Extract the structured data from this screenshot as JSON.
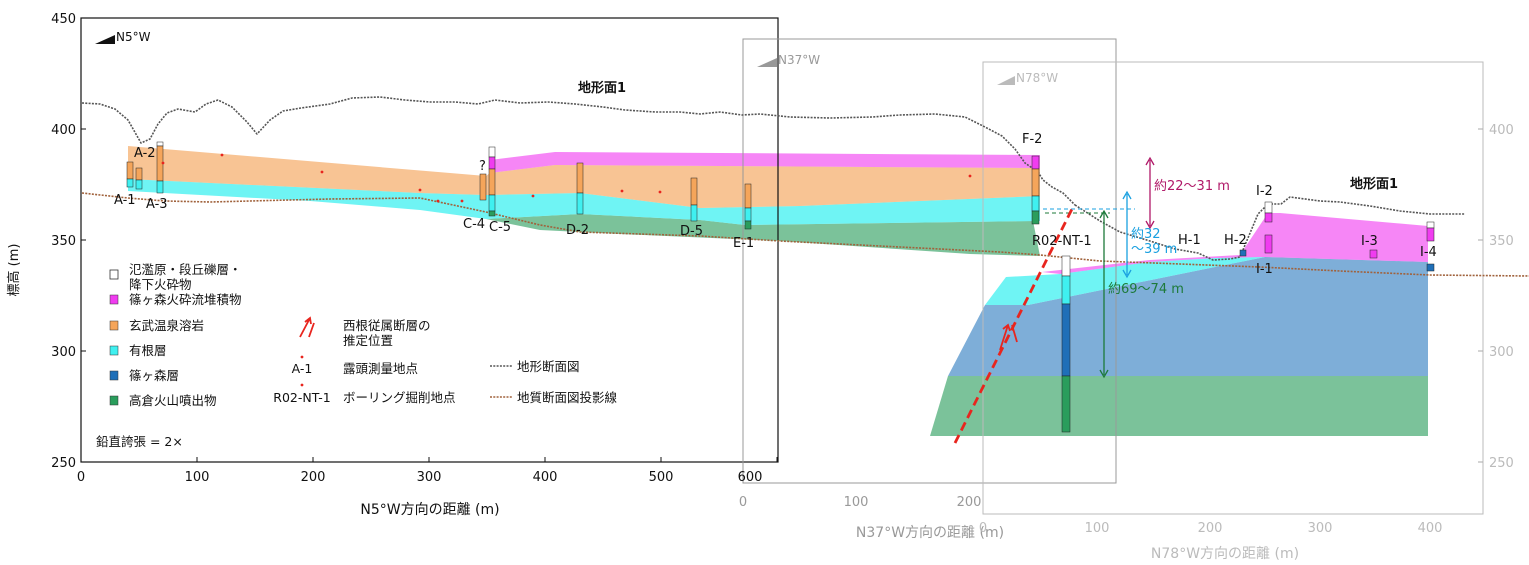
{
  "panel1": {
    "direction": "N5°W",
    "xlabel": "N5°W方向の距離 (m)",
    "ylabel": "標高 (m)",
    "yticks": [
      "450",
      "400",
      "350",
      "300",
      "250"
    ],
    "xticks": [
      "0",
      "100",
      "200",
      "300",
      "400",
      "500",
      "600"
    ],
    "surface_label": "地形面1",
    "vertical_exaggeration": "鉛直誇張 = 2×"
  },
  "panel2": {
    "direction": "N37°W",
    "xlabel": "N37°W方向の距離 (m)",
    "xticks": [
      "0",
      "100",
      "200"
    ]
  },
  "panel3": {
    "direction": "N78°W",
    "xlabel": "N78°W方向の距離 (m)",
    "xticks": [
      "0",
      "100",
      "200",
      "300",
      "400"
    ],
    "yticks": [
      "400",
      "350",
      "300",
      "250"
    ],
    "surface_label": "地形面1"
  },
  "sites": {
    "A1": "A-1",
    "A2": "A-2",
    "A3": "A-3",
    "q": "?",
    "C4": "C-4",
    "C5": "C-5",
    "D2": "D-2",
    "D5": "D-5",
    "E1": "E-1",
    "F2": "F-2",
    "R02": "R02-NT-1",
    "H1": "H-1",
    "H2": "H-2",
    "I1": "I-1",
    "I2": "I-2",
    "I3": "I-3",
    "I4": "I-4"
  },
  "annotations": {
    "a1": "約22〜31 m",
    "a2_1": "約32",
    "a2_2": "〜39 m",
    "a3": "約69〜74 m"
  },
  "legend": {
    "flood_1": "氾濫原・段丘礫層・",
    "flood_2": "降下火砕物",
    "shinomori_pf": "篠ヶ森火砕流堆積物",
    "genbu": "玄武温泉溶岩",
    "arine": "有根層",
    "shinomori": "篠ヶ森層",
    "takakura": "高倉火山噴出物",
    "fault_1": "西根従属断層の",
    "fault_2": "推定位置",
    "outcrop_sym": "A-1",
    "outcrop": "露頭測量地点",
    "boring_sym": "R02-NT-1",
    "boring": "ボーリング掘削地点",
    "topo": "地形断面図",
    "proj": "地質断面図投影線"
  },
  "colors": {
    "shinomori_pf": "#f03cf0",
    "genbu": "#f5a55a",
    "arine": "#3ff0f0",
    "shinomori": "#2f7cc0",
    "takakura": "#2a9d5c",
    "fault": "#e8251e",
    "topo": "#555555",
    "proj": "#a0623c",
    "annot1": "#b01868",
    "annot2": "#1aa0e0",
    "annot3": "#1d7a3a"
  }
}
